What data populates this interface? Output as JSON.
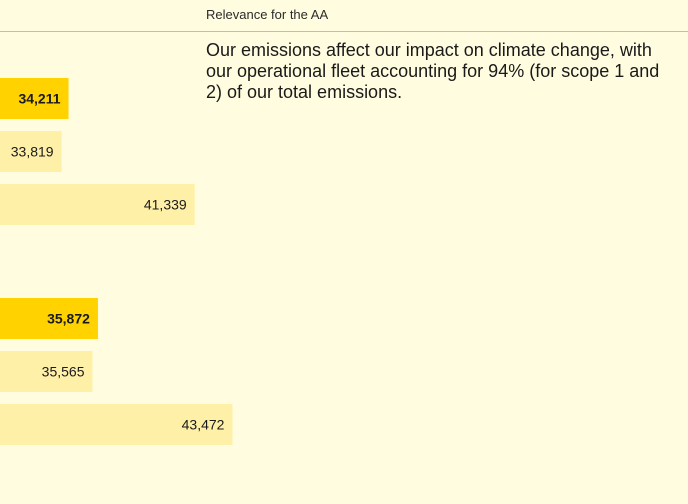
{
  "header": {
    "relevance_label": "Relevance for the AA"
  },
  "relevance_text": "Our emissions affect our impact on climate change, with our operational fleet accounting for 94% (for scope 1 and 2) of our total emissions.",
  "colors": {
    "background": "#fffcdf",
    "bar_current": "#ffd200",
    "bar_previous": "#fff0a8",
    "bar_older": "#fff0a8"
  },
  "chart_data": [
    {
      "type": "bar",
      "orientation": "horizontal",
      "values": [
        34211,
        33819,
        41339
      ],
      "labels": [
        "34,211",
        "33,819",
        "41,339"
      ],
      "highlight_index": 0
    },
    {
      "type": "bar",
      "orientation": "horizontal",
      "values": [
        35872,
        35565,
        43472
      ],
      "labels": [
        "35,872",
        "35,565",
        "43,472"
      ],
      "highlight_index": 0
    }
  ]
}
